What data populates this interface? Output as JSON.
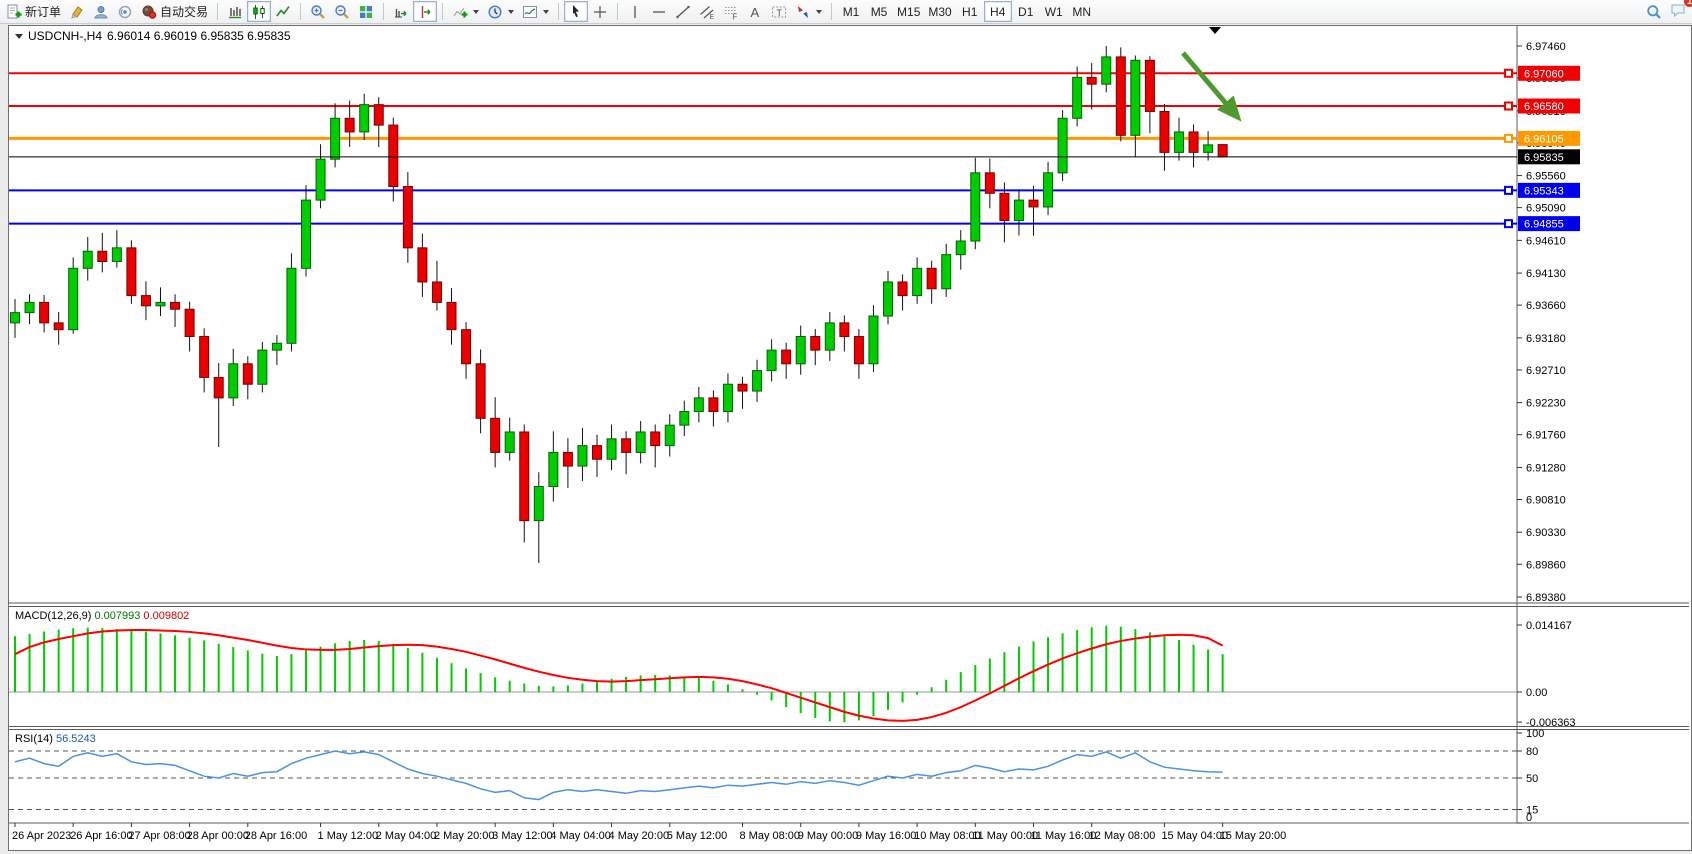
{
  "toolbar": {
    "new_order_label": "新订单",
    "auto_trading_label": "自动交易",
    "timeframes": [
      "M1",
      "M5",
      "M15",
      "M30",
      "H1",
      "H4",
      "D1",
      "W1",
      "MN"
    ],
    "active_timeframe": "H4",
    "notification_badge": "1",
    "glyphs": {
      "text_tool": "A",
      "label_tool": "T",
      "channel": "E",
      "fibonacci": "F"
    }
  },
  "chart": {
    "symbol": "USDCNH-,H4",
    "ohlc_text": "6.96014 6.96019 6.95835 6.95835",
    "price_axis_ticks": [
      "6.97460",
      "6.96990",
      "6.96510",
      "6.96040",
      "6.95560",
      "6.95090",
      "6.94610",
      "6.94130",
      "6.93660",
      "6.93180",
      "6.92710",
      "6.92230",
      "6.91760",
      "6.91280",
      "6.90810",
      "6.90330",
      "6.89860",
      "6.89380"
    ],
    "hlines": [
      {
        "price": 6.9706,
        "label": "6.97060",
        "color": "#F00000",
        "width": 2
      },
      {
        "price": 6.9658,
        "label": "6.96580",
        "color": "#F00000",
        "width": 2
      },
      {
        "price": 6.96105,
        "label": "6.96105",
        "color": "#FF9900",
        "width": 3
      },
      {
        "price": 6.95343,
        "label": "6.95343",
        "color": "#0000F0",
        "width": 2
      },
      {
        "price": 6.94855,
        "label": "6.94855",
        "color": "#0000F0",
        "width": 2
      }
    ],
    "current_price": {
      "label": "6.95835",
      "color": "#000000"
    },
    "arrow_annotation": {
      "color": "#4E9A2E"
    },
    "time_ticks": [
      {
        "label": "26 Apr 2023",
        "index": 0
      },
      {
        "label": "26 Apr 16:00",
        "index": 4
      },
      {
        "label": "27 Apr 08:00",
        "index": 8
      },
      {
        "label": "28 Apr 00:00",
        "index": 12
      },
      {
        "label": "28 Apr 16:00",
        "index": 16
      },
      {
        "label": "1 May 12:00",
        "index": 21
      },
      {
        "label": "2 May 04:00",
        "index": 25
      },
      {
        "label": "2 May 20:00",
        "index": 29
      },
      {
        "label": "3 May 12:00",
        "index": 33
      },
      {
        "label": "4 May 04:00",
        "index": 37
      },
      {
        "label": "4 May 20:00",
        "index": 41
      },
      {
        "label": "5 May 12:00",
        "index": 45
      },
      {
        "label": "8 May 08:00",
        "index": 50
      },
      {
        "label": "9 May 00:00",
        "index": 54
      },
      {
        "label": "9 May 16:00",
        "index": 58
      },
      {
        "label": "10 May 08:00",
        "index": 62
      },
      {
        "label": "11 May 00:00",
        "index": 66
      },
      {
        "label": "11 May 16:00",
        "index": 70
      },
      {
        "label": "12 May 08:00",
        "index": 74
      },
      {
        "label": "15 May 04:00",
        "index": 79
      },
      {
        "label": "15 May 20:00",
        "index": 83
      }
    ]
  },
  "chart_data": {
    "type": "candlestick",
    "symbol": "USDCNH",
    "timeframe": "H4",
    "price_range": [
      6.8938,
      6.9746
    ],
    "up_color": "#00CD00",
    "down_color": "#EB0000",
    "wick_color": "#111111",
    "candles": [
      [
        6.934,
        6.9375,
        6.9318,
        6.9355
      ],
      [
        6.9355,
        6.9382,
        6.9338,
        6.937
      ],
      [
        6.937,
        6.9381,
        6.9326,
        6.934
      ],
      [
        6.934,
        6.9356,
        6.9308,
        6.933
      ],
      [
        6.933,
        6.9436,
        6.9324,
        6.942
      ],
      [
        6.942,
        6.9466,
        6.9402,
        6.9445
      ],
      [
        6.9445,
        6.9472,
        6.9414,
        6.943
      ],
      [
        6.943,
        6.9476,
        6.9421,
        6.945
      ],
      [
        6.945,
        6.9461,
        6.9368,
        6.938
      ],
      [
        6.938,
        6.9401,
        6.9344,
        6.9365
      ],
      [
        6.9365,
        6.9392,
        6.935,
        6.937
      ],
      [
        6.937,
        6.9382,
        6.9334,
        6.936
      ],
      [
        6.936,
        6.9371,
        6.9298,
        6.932
      ],
      [
        6.932,
        6.9332,
        6.9238,
        6.926
      ],
      [
        6.926,
        6.9281,
        6.9158,
        6.923
      ],
      [
        6.923,
        6.9302,
        6.9218,
        6.928
      ],
      [
        6.928,
        6.9291,
        6.9228,
        6.925
      ],
      [
        6.925,
        6.9312,
        6.9238,
        6.93
      ],
      [
        6.93,
        6.9322,
        6.9278,
        6.931
      ],
      [
        6.931,
        6.9442,
        6.9298,
        6.942
      ],
      [
        6.942,
        6.9542,
        6.9408,
        6.952
      ],
      [
        6.952,
        6.9602,
        6.9508,
        6.958
      ],
      [
        6.958,
        6.9662,
        6.9568,
        6.964
      ],
      [
        6.964,
        6.9666,
        6.9598,
        6.962
      ],
      [
        6.962,
        6.9676,
        6.9608,
        6.966
      ],
      [
        6.966,
        6.9671,
        6.9598,
        6.963
      ],
      [
        6.963,
        6.9641,
        6.9518,
        6.954
      ],
      [
        6.954,
        6.9561,
        6.9428,
        6.945
      ],
      [
        6.945,
        6.9471,
        6.9378,
        6.94
      ],
      [
        6.94,
        6.9431,
        6.9358,
        6.937
      ],
      [
        6.937,
        6.9391,
        6.9308,
        6.933
      ],
      [
        6.933,
        6.9341,
        6.9258,
        6.928
      ],
      [
        6.928,
        6.9301,
        6.9178,
        6.92
      ],
      [
        6.92,
        6.9231,
        6.9128,
        6.915
      ],
      [
        6.915,
        6.9201,
        6.9138,
        6.918
      ],
      [
        6.918,
        6.9191,
        6.9018,
        6.905
      ],
      [
        6.905,
        6.9121,
        6.8988,
        6.91
      ],
      [
        6.91,
        6.9181,
        6.9078,
        6.915
      ],
      [
        6.915,
        6.9171,
        6.9098,
        6.913
      ],
      [
        6.913,
        6.9186,
        6.9108,
        6.916
      ],
      [
        6.916,
        6.9176,
        6.9114,
        6.914
      ],
      [
        6.914,
        6.9191,
        6.9124,
        6.917
      ],
      [
        6.917,
        6.9181,
        6.9118,
        6.915
      ],
      [
        6.915,
        6.9196,
        6.9134,
        6.918
      ],
      [
        6.918,
        6.9191,
        6.9128,
        6.916
      ],
      [
        6.916,
        6.9206,
        6.9144,
        6.919
      ],
      [
        6.919,
        6.9226,
        6.9174,
        6.921
      ],
      [
        6.921,
        6.9246,
        6.9194,
        6.923
      ],
      [
        6.923,
        6.9241,
        6.9188,
        6.921
      ],
      [
        6.921,
        6.9266,
        6.9194,
        6.925
      ],
      [
        6.925,
        6.9261,
        6.9214,
        6.924
      ],
      [
        6.924,
        6.9286,
        6.9224,
        6.927
      ],
      [
        6.927,
        6.9316,
        6.9254,
        6.93
      ],
      [
        6.93,
        6.9311,
        6.9258,
        6.928
      ],
      [
        6.928,
        6.9336,
        6.9264,
        6.932
      ],
      [
        6.932,
        6.9331,
        6.9278,
        6.93
      ],
      [
        6.93,
        6.9356,
        6.9284,
        6.934
      ],
      [
        6.934,
        6.9351,
        6.9298,
        6.932
      ],
      [
        6.932,
        6.9331,
        6.9258,
        6.928
      ],
      [
        6.928,
        6.9366,
        6.9268,
        6.935
      ],
      [
        6.935,
        6.9416,
        6.9338,
        6.94
      ],
      [
        6.94,
        6.9411,
        6.9358,
        6.938
      ],
      [
        6.938,
        6.9436,
        6.9368,
        6.942
      ],
      [
        6.942,
        6.9431,
        6.9368,
        6.939
      ],
      [
        6.939,
        6.9456,
        6.9378,
        6.944
      ],
      [
        6.944,
        6.9476,
        6.9418,
        6.946
      ],
      [
        6.946,
        6.9582,
        6.9448,
        6.956
      ],
      [
        6.956,
        6.9581,
        6.9508,
        6.953
      ],
      [
        6.953,
        6.9546,
        6.9458,
        6.949
      ],
      [
        6.949,
        6.9536,
        6.9468,
        6.952
      ],
      [
        6.952,
        6.9541,
        6.9468,
        6.951
      ],
      [
        6.951,
        6.9576,
        6.9498,
        6.956
      ],
      [
        6.956,
        6.9652,
        6.9548,
        6.964
      ],
      [
        6.964,
        6.9716,
        6.9628,
        6.97
      ],
      [
        6.97,
        6.9721,
        6.9653,
        6.969
      ],
      [
        6.969,
        6.9746,
        6.9678,
        6.973
      ],
      [
        6.973,
        6.9744,
        6.9606,
        6.9615
      ],
      [
        6.9615,
        6.9732,
        6.9584,
        6.9725
      ],
      [
        6.9725,
        6.9731,
        6.9618,
        6.965
      ],
      [
        6.965,
        6.9661,
        6.9563,
        6.959
      ],
      [
        6.959,
        6.9641,
        6.9578,
        6.962
      ],
      [
        6.962,
        6.9631,
        6.9568,
        6.959
      ],
      [
        6.959,
        6.9621,
        6.9578,
        6.9601
      ],
      [
        6.96014,
        6.96019,
        6.95835,
        6.95835
      ]
    ],
    "indicators": {
      "macd": {
        "label": "MACD(12,26,9)",
        "value_main": "0.007993",
        "value_signal": "0.009802",
        "axis_labels": [
          "0.014167",
          "0.00",
          "-0.006363"
        ],
        "range": [
          -0.006363,
          0.014167
        ],
        "hist_color": "#00CC00",
        "signal_color": "#FF0000",
        "histogram": [
          0.0118,
          0.0123,
          0.0128,
          0.0132,
          0.0135,
          0.0136,
          0.0135,
          0.0133,
          0.0131,
          0.0128,
          0.0124,
          0.012,
          0.0115,
          0.0109,
          0.0102,
          0.0095,
          0.0088,
          0.0081,
          0.0076,
          0.008,
          0.0088,
          0.0096,
          0.0103,
          0.0108,
          0.011,
          0.0108,
          0.0102,
          0.0093,
          0.0083,
          0.0072,
          0.0061,
          0.005,
          0.004,
          0.0031,
          0.0024,
          0.0018,
          0.0013,
          0.0012,
          0.0014,
          0.0018,
          0.0023,
          0.0028,
          0.0032,
          0.0035,
          0.0036,
          0.0035,
          0.0033,
          0.003,
          0.0024,
          0.0016,
          0.0006,
          -0.0006,
          -0.0018,
          -0.0032,
          -0.0045,
          -0.0055,
          -0.0062,
          -0.0064,
          -0.006,
          -0.0051,
          -0.0038,
          -0.0022,
          -0.0006,
          0.001,
          0.0026,
          0.0042,
          0.0057,
          0.0071,
          0.0084,
          0.0096,
          0.0107,
          0.0116,
          0.0124,
          0.0131,
          0.0137,
          0.014,
          0.0138,
          0.0133,
          0.0126,
          0.0118,
          0.011,
          0.01,
          0.009,
          0.008
        ],
        "signal": [
          0.008,
          0.0095,
          0.0105,
          0.0112,
          0.0118,
          0.0124,
          0.0128,
          0.013,
          0.0131,
          0.0131,
          0.013,
          0.0129,
          0.0127,
          0.0124,
          0.012,
          0.0115,
          0.011,
          0.0104,
          0.0098,
          0.0093,
          0.009,
          0.0089,
          0.0089,
          0.0091,
          0.0094,
          0.0097,
          0.0099,
          0.01,
          0.0099,
          0.0096,
          0.0091,
          0.0085,
          0.0077,
          0.0069,
          0.006,
          0.0051,
          0.0043,
          0.0036,
          0.003,
          0.0026,
          0.0023,
          0.0022,
          0.0023,
          0.0025,
          0.0027,
          0.0029,
          0.0031,
          0.0032,
          0.0031,
          0.0028,
          0.0023,
          0.0016,
          0.0008,
          -0.0002,
          -0.0012,
          -0.0022,
          -0.0032,
          -0.0042,
          -0.005,
          -0.0056,
          -0.006,
          -0.0061,
          -0.0059,
          -0.0053,
          -0.0044,
          -0.0032,
          -0.0018,
          -0.0003,
          0.0013,
          0.0029,
          0.0044,
          0.0058,
          0.0071,
          0.0082,
          0.0092,
          0.0101,
          0.0108,
          0.0113,
          0.0117,
          0.012,
          0.0121,
          0.012,
          0.0114,
          0.0098
        ]
      },
      "rsi": {
        "label": "RSI(14)",
        "value": "56.5243",
        "axis_labels": [
          "100",
          "80",
          "50",
          "15",
          "0"
        ],
        "levels": [
          80,
          50,
          15
        ],
        "range": [
          0,
          100
        ],
        "color": "#4D92DB",
        "values": [
          68,
          72,
          66,
          63,
          74,
          78,
          74,
          77,
          68,
          65,
          66,
          64,
          58,
          52,
          50,
          55,
          52,
          56,
          57,
          66,
          72,
          76,
          80,
          77,
          79,
          76,
          68,
          60,
          55,
          52,
          48,
          44,
          38,
          34,
          36,
          28,
          26,
          34,
          37,
          35,
          37,
          35,
          33,
          36,
          35,
          37,
          39,
          41,
          39,
          42,
          41,
          43,
          45,
          43,
          46,
          44,
          47,
          45,
          42,
          47,
          52,
          50,
          54,
          52,
          56,
          58,
          64,
          61,
          57,
          60,
          59,
          63,
          70,
          76,
          74,
          79,
          72,
          78,
          68,
          62,
          60,
          58,
          57,
          56.5
        ]
      }
    }
  }
}
